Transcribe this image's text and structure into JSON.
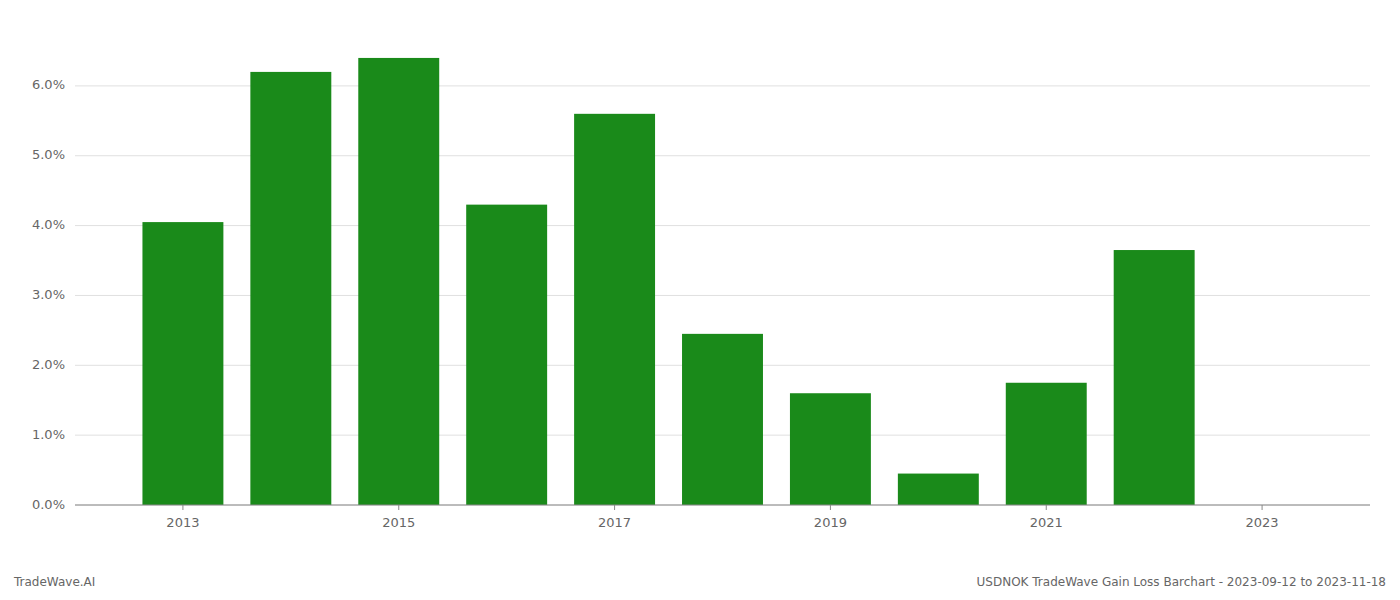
{
  "chart_data": {
    "type": "bar",
    "x": [
      2013,
      2014,
      2015,
      2016,
      2017,
      2018,
      2019,
      2020,
      2021,
      2022,
      2023
    ],
    "values": [
      0.0405,
      0.062,
      0.064,
      0.043,
      0.056,
      0.0245,
      0.016,
      0.0045,
      0.0175,
      0.0365,
      0.0
    ],
    "color": "#1a8a1a",
    "xlim": [
      2012,
      2024
    ],
    "xticks": [
      2013,
      2015,
      2017,
      2019,
      2021,
      2023
    ],
    "ylim": [
      0.0,
      0.068
    ],
    "yticks": [
      {
        "value": 0.0,
        "label": "0.0%"
      },
      {
        "value": 0.01,
        "label": "1.0%"
      },
      {
        "value": 0.02,
        "label": "2.0%"
      },
      {
        "value": 0.03,
        "label": "3.0%"
      },
      {
        "value": 0.04,
        "label": "4.0%"
      },
      {
        "value": 0.05,
        "label": "5.0%"
      },
      {
        "value": 0.06,
        "label": "6.0%"
      }
    ],
    "grid": true,
    "annotations": [
      "TradeWave.AI",
      "USDNOK TradeWave Gain Loss Barchart - 2023-09-12 to 2023-11-18"
    ]
  }
}
